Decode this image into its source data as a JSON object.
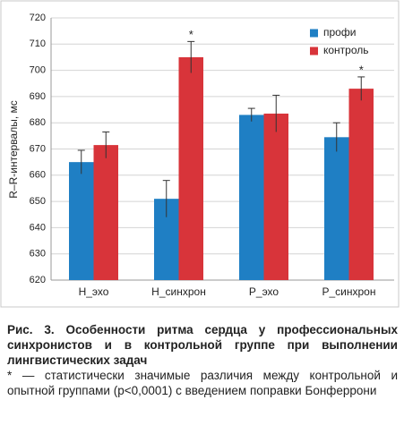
{
  "chart_data": {
    "type": "bar",
    "y_label": "R–R-интервалы, мс",
    "categories": [
      "Н_эхо",
      "Н_синхрон",
      "Р_эхо",
      "Р_синхрон"
    ],
    "series": [
      {
        "name": "профи",
        "color": "#1f7fc4",
        "values": [
          665,
          651,
          683,
          674.5
        ],
        "errors": [
          4.5,
          7,
          2.5,
          5.5
        ]
      },
      {
        "name": "контроль",
        "color": "#d8343a",
        "values": [
          671.5,
          705,
          683.5,
          693
        ],
        "errors": [
          5,
          6,
          7,
          4.5
        ]
      }
    ],
    "significance": [
      null,
      "*",
      null,
      "*"
    ],
    "ylim": [
      620,
      720
    ],
    "yticks": [
      620,
      630,
      640,
      650,
      660,
      670,
      680,
      690,
      700,
      710,
      720
    ],
    "grid": true,
    "legend": "upper right"
  },
  "caption": {
    "title": "Рис. 3. Особенности ритма сердца у профессиональных синхронистов и в контрольной группе при выполнении лингвистических задач",
    "note": "* — статистически значимые различия между контрольной и опытной группами (p<0,0001) с введением поправки Бонферрони"
  }
}
